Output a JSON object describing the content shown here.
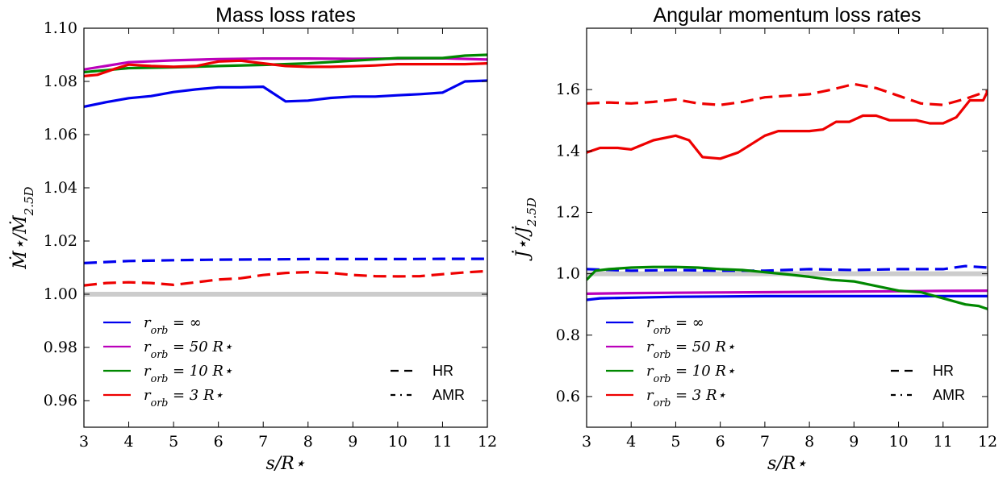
{
  "chart_data": [
    {
      "type": "line",
      "title": "Mass loss rates",
      "xlabel": "s/R⋆",
      "ylabel": "Ṁ⋆/Ṁ2.5D",
      "xlim": [
        3,
        12
      ],
      "ylim": [
        0.95,
        1.1
      ],
      "xticks": [
        "3",
        "4",
        "5",
        "6",
        "7",
        "8",
        "9",
        "10",
        "11",
        "12"
      ],
      "yticks": [
        "0.96",
        "0.98",
        "1.00",
        "1.02",
        "1.04",
        "1.06",
        "1.08",
        "1.10"
      ],
      "reference_line": 1.0,
      "grid": false,
      "series": [
        {
          "name": "r_orb = ∞",
          "scheme": "HR",
          "color": "#0000ee",
          "x": [
            3,
            4,
            5,
            6,
            7,
            8,
            9,
            10,
            11,
            12
          ],
          "y": [
            1.0117,
            1.0125,
            1.0128,
            1.013,
            1.0131,
            1.0132,
            1.0132,
            1.0132,
            1.0133,
            1.0133
          ]
        },
        {
          "name": "r_orb = ∞",
          "scheme": "AMR",
          "color": "#0000ee",
          "x": [
            3,
            3.5,
            4,
            4.5,
            5,
            5.5,
            6,
            6.5,
            7,
            7.5,
            8,
            8.5,
            9,
            9.5,
            10,
            10.5,
            11,
            11.5,
            12
          ],
          "y": [
            1.0705,
            1.0722,
            1.0737,
            1.0745,
            1.076,
            1.077,
            1.0778,
            1.0778,
            1.078,
            1.0725,
            1.0728,
            1.0738,
            1.0743,
            1.0743,
            1.0748,
            1.0752,
            1.0758,
            1.08,
            1.0803
          ]
        },
        {
          "name": "r_orb = 50 R⋆",
          "scheme": "AMR",
          "color": "#bb00bb",
          "x": [
            3,
            4,
            5,
            6,
            7,
            8,
            9,
            10,
            11,
            12
          ],
          "y": [
            1.0845,
            1.0872,
            1.0879,
            1.0884,
            1.0886,
            1.0886,
            1.0885,
            1.0886,
            1.0887,
            1.0882
          ]
        },
        {
          "name": "r_orb = 10 R⋆",
          "scheme": "AMR",
          "color": "#008800",
          "x": [
            3,
            4,
            5,
            6,
            7,
            8,
            9,
            10,
            11,
            11.5,
            12
          ],
          "y": [
            1.0835,
            1.085,
            1.0853,
            1.0858,
            1.0862,
            1.0868,
            1.0878,
            1.0888,
            1.0888,
            1.0897,
            1.09
          ]
        },
        {
          "name": "r_orb = 3 R⋆",
          "scheme": "AMR",
          "color": "#ee0000",
          "x": [
            3,
            3.3,
            3.7,
            4,
            4.5,
            5,
            5.5,
            6,
            6.5,
            7,
            7.5,
            8,
            8.5,
            9,
            9.5,
            10,
            10.5,
            11,
            11.5,
            12
          ],
          "y": [
            1.082,
            1.0825,
            1.0848,
            1.0863,
            1.0858,
            1.0855,
            1.0858,
            1.0875,
            1.0878,
            1.0868,
            1.0858,
            1.0855,
            1.0855,
            1.0857,
            1.086,
            1.0865,
            1.0865,
            1.0865,
            1.0865,
            1.0868
          ]
        },
        {
          "name": "r_orb = 3 R⋆",
          "scheme": "HR",
          "color": "#ee0000",
          "x": [
            3,
            3.5,
            4,
            4.5,
            5,
            5.5,
            6,
            6.5,
            7,
            7.5,
            8,
            8.5,
            9,
            9.5,
            10,
            10.5,
            11,
            11.5,
            12
          ],
          "y": [
            1.0033,
            1.0042,
            1.0045,
            1.0042,
            1.0035,
            1.0045,
            1.0055,
            1.006,
            1.0072,
            1.008,
            1.0083,
            1.008,
            1.0072,
            1.0068,
            1.0067,
            1.0068,
            1.0075,
            1.0082,
            1.0087
          ]
        }
      ],
      "legend": {
        "placement": "lower-left",
        "entries": [
          {
            "label": "r_orb = ∞",
            "color": "#0000ee"
          },
          {
            "label": "r_orb = 50 R⋆",
            "color": "#bb00bb"
          },
          {
            "label": "r_orb = 10 R⋆",
            "color": "#008800"
          },
          {
            "label": "r_orb = 3 R⋆",
            "color": "#ee0000"
          }
        ],
        "styles": [
          {
            "label": "HR",
            "dash": "dashed"
          },
          {
            "label": "AMR",
            "dash": "dashdot"
          }
        ]
      }
    },
    {
      "type": "line",
      "title": "Angular momentum loss rates",
      "xlabel": "s/R⋆",
      "ylabel": "J̇⋆/J̇2.5D",
      "xlim": [
        3,
        12
      ],
      "ylim": [
        0.5,
        1.8
      ],
      "xticks": [
        "3",
        "4",
        "5",
        "6",
        "7",
        "8",
        "9",
        "10",
        "11",
        "12"
      ],
      "yticks": [
        "0.6",
        "0.8",
        "1.0",
        "1.2",
        "1.4",
        "1.6"
      ],
      "reference_line": 1.0,
      "grid": false,
      "series": [
        {
          "name": "r_orb = ∞",
          "scheme": "HR",
          "color": "#0000ee",
          "x": [
            3,
            4,
            5,
            6,
            7,
            8,
            9,
            10,
            11,
            11.5,
            12
          ],
          "y": [
            1.015,
            1.01,
            1.012,
            1.01,
            1.01,
            1.015,
            1.012,
            1.015,
            1.015,
            1.025,
            1.02
          ]
        },
        {
          "name": "r_orb = ∞",
          "scheme": "AMR",
          "color": "#0000ee",
          "x": [
            3,
            3.3,
            4,
            5,
            6,
            7,
            8,
            9,
            10,
            11,
            12
          ],
          "y": [
            0.915,
            0.92,
            0.922,
            0.925,
            0.926,
            0.927,
            0.927,
            0.927,
            0.927,
            0.927,
            0.927
          ]
        },
        {
          "name": "r_orb = 50 R⋆",
          "scheme": "AMR",
          "color": "#bb00bb",
          "x": [
            3,
            4,
            5,
            6,
            7,
            8,
            9,
            10,
            11,
            12
          ],
          "y": [
            0.935,
            0.937,
            0.938,
            0.939,
            0.94,
            0.941,
            0.942,
            0.943,
            0.944,
            0.945
          ]
        },
        {
          "name": "r_orb = 10 R⋆",
          "scheme": "AMR",
          "color": "#008800",
          "x": [
            3,
            3.2,
            3.5,
            4,
            4.5,
            5,
            5.5,
            6,
            6.5,
            7,
            7.5,
            8,
            8.5,
            9,
            9.5,
            10,
            10.5,
            11,
            11.5,
            11.8,
            12
          ],
          "y": [
            0.98,
            1.01,
            1.015,
            1.02,
            1.022,
            1.022,
            1.02,
            1.015,
            1.012,
            1.005,
            0.998,
            0.99,
            0.98,
            0.975,
            0.96,
            0.945,
            0.94,
            0.92,
            0.9,
            0.895,
            0.885
          ]
        },
        {
          "name": "r_orb = 3 R⋆",
          "scheme": "AMR",
          "color": "#ee0000",
          "x": [
            3,
            3.3,
            3.7,
            4,
            4.5,
            5,
            5.3,
            5.6,
            6,
            6.4,
            7,
            7.3,
            7.7,
            8,
            8.3,
            8.6,
            8.9,
            9.2,
            9.5,
            9.8,
            10.1,
            10.4,
            10.7,
            11,
            11.3,
            11.6,
            11.9,
            12
          ],
          "y": [
            1.395,
            1.41,
            1.41,
            1.405,
            1.435,
            1.45,
            1.435,
            1.38,
            1.375,
            1.395,
            1.45,
            1.465,
            1.465,
            1.465,
            1.47,
            1.495,
            1.495,
            1.515,
            1.515,
            1.5,
            1.5,
            1.5,
            1.49,
            1.49,
            1.51,
            1.565,
            1.565,
            1.595
          ]
        },
        {
          "name": "r_orb = 3 R⋆",
          "scheme": "HR",
          "color": "#ee0000",
          "x": [
            3,
            3.5,
            4,
            4.5,
            5,
            5.5,
            6,
            6.5,
            7,
            7.5,
            8,
            8.5,
            9,
            9.5,
            10,
            10.5,
            11,
            11.5,
            12
          ],
          "y": [
            1.555,
            1.558,
            1.555,
            1.56,
            1.568,
            1.555,
            1.55,
            1.56,
            1.575,
            1.58,
            1.585,
            1.6,
            1.618,
            1.605,
            1.58,
            1.555,
            1.55,
            1.57,
            1.595
          ]
        }
      ],
      "legend": {
        "placement": "lower-left",
        "entries": [
          {
            "label": "r_orb = ∞",
            "color": "#0000ee"
          },
          {
            "label": "r_orb = 50 R⋆",
            "color": "#bb00bb"
          },
          {
            "label": "r_orb = 10 R⋆",
            "color": "#008800"
          },
          {
            "label": "r_orb = 3 R⋆",
            "color": "#ee0000"
          }
        ],
        "styles": [
          {
            "label": "HR",
            "dash": "dashed"
          },
          {
            "label": "AMR",
            "dash": "dashdot"
          }
        ]
      }
    }
  ]
}
